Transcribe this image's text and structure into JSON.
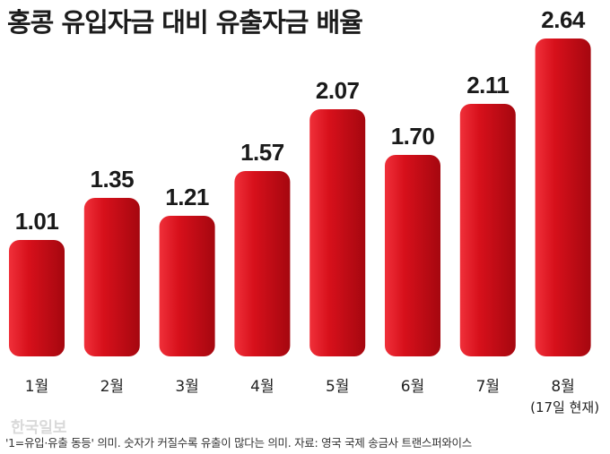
{
  "title": "홍콩 유입자금 대비 유출자금 배율",
  "chart_data": {
    "type": "bar",
    "title": "홍콩 유입자금 대비 유출자금 배율",
    "categories": [
      "1월",
      "2월",
      "3월",
      "4월",
      "5월",
      "6월",
      "7월",
      "8월"
    ],
    "category_notes": [
      "",
      "",
      "",
      "",
      "",
      "",
      "",
      "(17일 현재)"
    ],
    "values": [
      1.01,
      1.35,
      1.21,
      1.57,
      2.07,
      1.7,
      2.11,
      2.64
    ],
    "value_labels": [
      "1.01",
      "1.35",
      "1.21",
      "1.57",
      "2.07",
      "1.70",
      "2.11",
      "2.64"
    ],
    "bar_color": "#d7101b",
    "bar_highlight": "#f0303a",
    "bar_shadow": "#a5070f",
    "xlabel": "",
    "ylabel": "",
    "grid": false,
    "legend": "none"
  },
  "watermark": "한국일보",
  "footnote": "'1=유입·유출 동등' 의미. 숫자가 커질수록 유출이 많다는 의미. 자료: 영국 국제 송금사 트랜스퍼와이스"
}
